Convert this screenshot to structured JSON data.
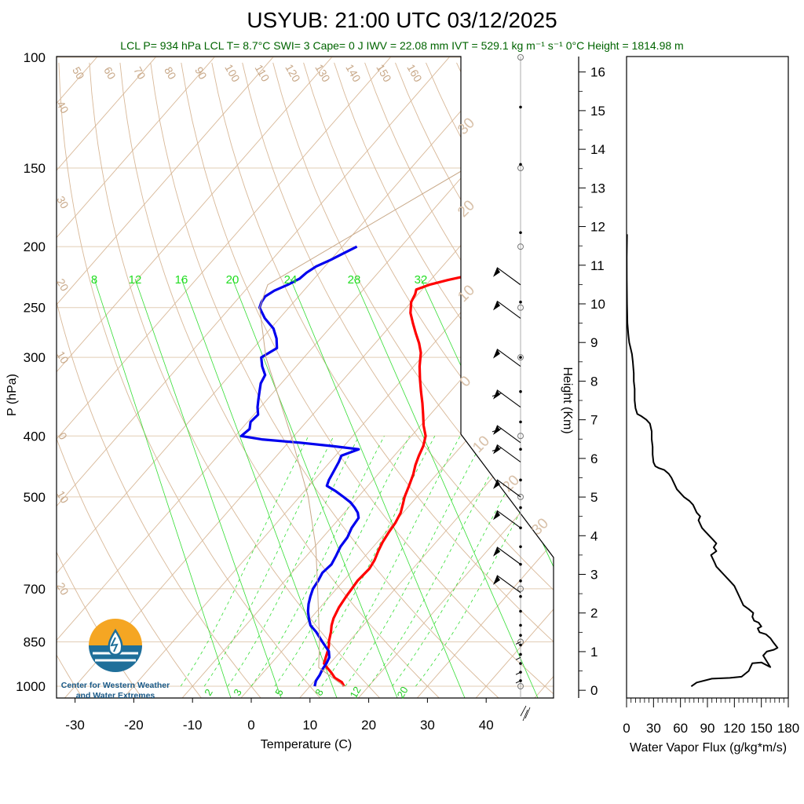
{
  "title": "USYUB: 21:00 UTC 03/12/2025",
  "subtitle": "LCL P= 934 hPa  LCL T= 8.7°C  SWI= 3  Cape= 0 J  IWV = 22.08 mm  IVT = 529.1 kg m⁻¹ s⁻¹  0°C Height = 1814.98 m",
  "logo": {
    "line1": "Center for Western Weather",
    "line2": "and Water Extremes"
  },
  "colors": {
    "temperature": "#ff0000",
    "dewpoint": "#0000ee",
    "isotherm": "#d8b898",
    "mixing_ratio": "#33dd33",
    "flux": "#000000"
  },
  "chart_data": [
    {
      "type": "line",
      "chart": "skew-t log-p",
      "xlabel": "Temperature (C)",
      "ylabel": "P (hPa)",
      "x_ticks": [
        -30,
        -20,
        -10,
        0,
        10,
        20,
        30,
        40
      ],
      "y_ticks": [
        100,
        150,
        200,
        250,
        300,
        400,
        500,
        700,
        850,
        1000
      ],
      "isotherm_labels_top": [
        50,
        60,
        70,
        80,
        90,
        100,
        110,
        120,
        130,
        140,
        150,
        160
      ],
      "isotherm_labels_left": [
        40,
        30,
        20,
        10,
        0,
        -10,
        -20
      ],
      "isotherm_labels_right": [
        30,
        20,
        10,
        0,
        10,
        20,
        30
      ],
      "mixing_ratio_labels_top": [
        8,
        12,
        16,
        20,
        24,
        28,
        32
      ],
      "mixing_ratio_labels_bottom": [
        2,
        3,
        5,
        8,
        12,
        20
      ],
      "series": [
        {
          "name": "temperature",
          "points": [
            [
              1000,
              15.8
            ],
            [
              985,
              14.8
            ],
            [
              970,
              13.0
            ],
            [
              950,
              11.5
            ],
            [
              935,
              10.2
            ],
            [
              920,
              9.0
            ],
            [
              900,
              8.4
            ],
            [
              880,
              7.8
            ],
            [
              860,
              7.1
            ],
            [
              850,
              6.6
            ],
            [
              820,
              5.5
            ],
            [
              800,
              4.6
            ],
            [
              780,
              3.9
            ],
            [
              750,
              3.2
            ],
            [
              720,
              2.8
            ],
            [
              700,
              2.6
            ],
            [
              680,
              2.4
            ],
            [
              650,
              2.6
            ],
            [
              630,
              2.2
            ],
            [
              610,
              1.5
            ],
            [
              590,
              0.9
            ],
            [
              570,
              0.5
            ],
            [
              550,
              0.2
            ],
            [
              530,
              -0.4
            ],
            [
              510,
              -1.5
            ],
            [
              500,
              -2.1
            ],
            [
              480,
              -3.0
            ],
            [
              460,
              -4.0
            ],
            [
              445,
              -5.0
            ],
            [
              430,
              -5.8
            ],
            [
              415,
              -6.5
            ],
            [
              400,
              -7.6
            ],
            [
              385,
              -9.5
            ],
            [
              370,
              -11.2
            ],
            [
              355,
              -13.0
            ],
            [
              340,
              -15.0
            ],
            [
              325,
              -17.0
            ],
            [
              310,
              -19.0
            ],
            [
              295,
              -20.8
            ],
            [
              285,
              -22.5
            ],
            [
              275,
              -24.5
            ],
            [
              265,
              -26.5
            ],
            [
              255,
              -28.5
            ],
            [
              245,
              -30.0
            ],
            [
              238,
              -30.5
            ],
            [
              234,
              -31.0
            ],
            [
              230,
              -29.5
            ],
            [
              226,
              -27.0
            ],
            [
              222,
              -24.0
            ],
            [
              218,
              -22.8
            ],
            [
              214,
              -22.5
            ],
            [
              210,
              -21.5
            ],
            [
              206,
              -21.3
            ],
            [
              203,
              -21.0
            ],
            [
              200,
              -21.2
            ]
          ]
        },
        {
          "name": "dewpoint",
          "points": [
            [
              1000,
              10.8
            ],
            [
              980,
              10.2
            ],
            [
              960,
              10.0
            ],
            [
              940,
              9.6
            ],
            [
              920,
              9.4
            ],
            [
              900,
              9.0
            ],
            [
              880,
              8.0
            ],
            [
              850,
              5.5
            ],
            [
              820,
              3.0
            ],
            [
              800,
              1.0
            ],
            [
              780,
              -0.3
            ],
            [
              760,
              -1.5
            ],
            [
              740,
              -2.5
            ],
            [
              720,
              -3.3
            ],
            [
              700,
              -4.0
            ],
            [
              680,
              -4.3
            ],
            [
              660,
              -4.8
            ],
            [
              640,
              -4.5
            ],
            [
              620,
              -5.0
            ],
            [
              600,
              -5.6
            ],
            [
              580,
              -5.8
            ],
            [
              560,
              -6.5
            ],
            [
              540,
              -6.8
            ],
            [
              530,
              -7.7
            ],
            [
              520,
              -9.0
            ],
            [
              510,
              -10.5
            ],
            [
              500,
              -12.5
            ],
            [
              490,
              -14.6
            ],
            [
              480,
              -17.0
            ],
            [
              470,
              -17.5
            ],
            [
              455,
              -18.0
            ],
            [
              440,
              -18.5
            ],
            [
              430,
              -19.0
            ],
            [
              420,
              -17.0
            ],
            [
              415,
              -22.0
            ],
            [
              410,
              -28.0
            ],
            [
              405,
              -35.0
            ],
            [
              400,
              -39.0
            ],
            [
              390,
              -38.6
            ],
            [
              380,
              -39.5
            ],
            [
              370,
              -39.3
            ],
            [
              360,
              -40.5
            ],
            [
              350,
              -41.5
            ],
            [
              340,
              -42.5
            ],
            [
              330,
              -43.5
            ],
            [
              320,
              -44.0
            ],
            [
              310,
              -45.8
            ],
            [
              300,
              -47.3
            ],
            [
              290,
              -46.0
            ],
            [
              280,
              -47.5
            ],
            [
              270,
              -49.5
            ],
            [
              260,
              -52.5
            ],
            [
              250,
              -55.0
            ],
            [
              245,
              -55.5
            ],
            [
              240,
              -55.7
            ],
            [
              235,
              -55.0
            ],
            [
              230,
              -53.6
            ],
            [
              225,
              -52.5
            ],
            [
              220,
              -52.2
            ],
            [
              215,
              -51.5
            ],
            [
              210,
              -50.0
            ],
            [
              205,
              -48.8
            ],
            [
              200,
              -47.5
            ]
          ]
        },
        {
          "name": "parcel",
          "points": [
            [
              1000,
              15.8
            ],
            [
              934,
              8.7
            ],
            [
              850,
              5.0
            ],
            [
              700,
              -3.2
            ],
            [
              600,
              -9.8
            ],
            [
              500,
              -18.5
            ],
            [
              400,
              -30.5
            ],
            [
              300,
              -46.5
            ],
            [
              250,
              -55.0
            ],
            [
              230,
              -57.0
            ],
            [
              100,
              -25.0
            ]
          ]
        }
      ],
      "wind_barbs": [
        {
          "p": 230,
          "speed_kt": 55,
          "dir_deg": 235
        },
        {
          "p": 260,
          "speed_kt": 55,
          "dir_deg": 235
        },
        {
          "p": 310,
          "speed_kt": 55,
          "dir_deg": 235
        },
        {
          "p": 360,
          "speed_kt": 60,
          "dir_deg": 240
        },
        {
          "p": 410,
          "speed_kt": 60,
          "dir_deg": 240
        },
        {
          "p": 440,
          "speed_kt": 60,
          "dir_deg": 240
        },
        {
          "p": 500,
          "speed_kt": 50,
          "dir_deg": 230
        },
        {
          "p": 560,
          "speed_kt": 50,
          "dir_deg": 230
        },
        {
          "p": 640,
          "speed_kt": 50,
          "dir_deg": 220
        },
        {
          "p": 710,
          "speed_kt": 50,
          "dir_deg": 220
        }
      ]
    },
    {
      "type": "line",
      "xlabel": "Water Vapor Flux (g/kg*m/s)",
      "ylabel": "Height (Km)",
      "x_ticks": [
        0,
        30,
        60,
        90,
        120,
        150,
        180
      ],
      "y_ticks": [
        0,
        1,
        2,
        3,
        4,
        5,
        6,
        7,
        8,
        9,
        10,
        11,
        12,
        13,
        14,
        15,
        16
      ],
      "xlim": [
        0,
        180
      ],
      "ylim": [
        -0.2,
        16.4
      ],
      "series": [
        {
          "name": "flux",
          "points": [
            [
              72,
              0.1
            ],
            [
              78,
              0.2
            ],
            [
              95,
              0.3
            ],
            [
              115,
              0.32
            ],
            [
              128,
              0.35
            ],
            [
              136,
              0.5
            ],
            [
              138,
              0.6
            ],
            [
              140,
              0.7
            ],
            [
              150,
              0.72
            ],
            [
              160,
              0.6
            ],
            [
              152,
              0.9
            ],
            [
              156,
              1.0
            ],
            [
              164,
              1.05
            ],
            [
              168,
              1.1
            ],
            [
              163,
              1.25
            ],
            [
              160,
              1.35
            ],
            [
              155,
              1.45
            ],
            [
              148,
              1.5
            ],
            [
              146,
              1.6
            ],
            [
              150,
              1.65
            ],
            [
              147,
              1.75
            ],
            [
              142,
              1.8
            ],
            [
              140,
              1.9
            ],
            [
              141,
              2.0
            ],
            [
              136,
              2.1
            ],
            [
              130,
              2.2
            ],
            [
              128,
              2.3
            ],
            [
              126,
              2.4
            ],
            [
              124,
              2.5
            ],
            [
              122,
              2.6
            ],
            [
              120,
              2.7
            ],
            [
              116,
              2.8
            ],
            [
              112,
              2.9
            ],
            [
              108,
              3.0
            ],
            [
              104,
              3.1
            ],
            [
              100,
              3.2
            ],
            [
              98,
              3.3
            ],
            [
              96,
              3.4
            ],
            [
              94,
              3.5
            ],
            [
              100,
              3.6
            ],
            [
              97,
              3.7
            ],
            [
              100,
              3.8
            ],
            [
              96,
              3.9
            ],
            [
              92,
              4.0
            ],
            [
              88,
              4.1
            ],
            [
              84,
              4.2
            ],
            [
              82,
              4.3
            ],
            [
              80,
              4.4
            ],
            [
              82,
              4.5
            ],
            [
              78,
              4.6
            ],
            [
              76,
              4.7
            ],
            [
              74,
              4.8
            ],
            [
              70,
              4.9
            ],
            [
              64,
              5.0
            ],
            [
              60,
              5.1
            ],
            [
              56,
              5.2
            ],
            [
              54,
              5.3
            ],
            [
              52,
              5.4
            ],
            [
              50,
              5.5
            ],
            [
              47,
              5.6
            ],
            [
              42,
              5.7
            ],
            [
              36,
              5.75
            ],
            [
              32,
              5.8
            ],
            [
              30,
              5.9
            ],
            [
              29,
              6.1
            ],
            [
              29,
              6.3
            ],
            [
              28,
              6.5
            ],
            [
              28,
              6.7
            ],
            [
              26,
              6.9
            ],
            [
              22,
              7.0
            ],
            [
              16,
              7.1
            ],
            [
              12,
              7.15
            ],
            [
              10,
              7.3
            ],
            [
              9,
              7.5
            ],
            [
              9,
              7.8
            ],
            [
              8,
              8.0
            ],
            [
              8,
              8.2
            ],
            [
              7,
              8.5
            ],
            [
              6,
              8.7
            ],
            [
              4,
              8.9
            ],
            [
              3,
              9.0
            ],
            [
              2,
              9.2
            ],
            [
              1,
              9.5
            ],
            [
              0.5,
              10.0
            ],
            [
              0.3,
              10.6
            ],
            [
              0.2,
              11.2
            ],
            [
              0.5,
              11.8
            ]
          ]
        }
      ]
    }
  ]
}
